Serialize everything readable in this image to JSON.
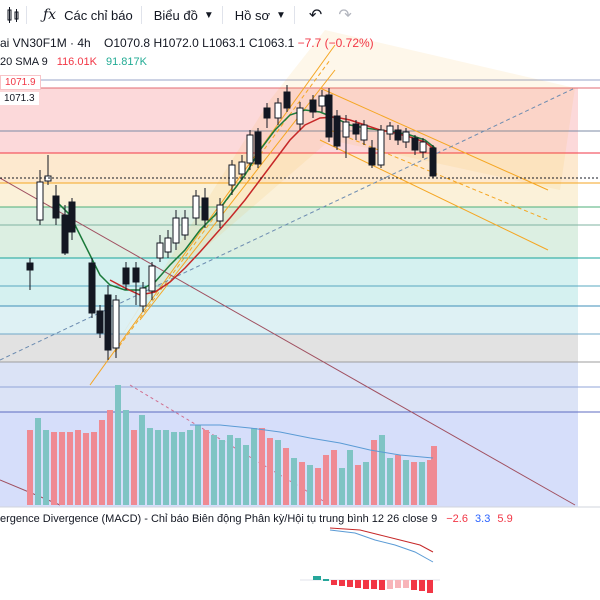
{
  "toolbar": {
    "indicators_label": "Các chỉ báo",
    "chart_type_label": "Biểu đồ",
    "profile_label": "Hồ sơ"
  },
  "legend": {
    "symbol": "ai VN30F1M · 4h",
    "open": "O1070.8",
    "high": "H1072.0",
    "low": "L1063.1",
    "close": "C1063.1",
    "change": "−7.7 (−0.72%)",
    "vol_label": "20 SMA 9",
    "vol_value": "116.01K",
    "vol_sma": "91.817K"
  },
  "price_tags": {
    "red": "1071.9",
    "grey": "1071.3"
  },
  "macd": {
    "title": "ergence Divergence (MACD) - Chỉ báo Biên động Phân kỳ/Hội tụ trung bình 12 26 close 9",
    "v1": "−2.6",
    "v2": "3.3",
    "v3": "5.9"
  },
  "colors": {
    "bull": "#ffffff",
    "bear": "#131722",
    "ma_green": "#1b7a3a",
    "ma_red": "#c62828",
    "channel": "#f5a623",
    "vol_up": "#7fc4c4",
    "vol_down": "#ef8a93"
  }
}
